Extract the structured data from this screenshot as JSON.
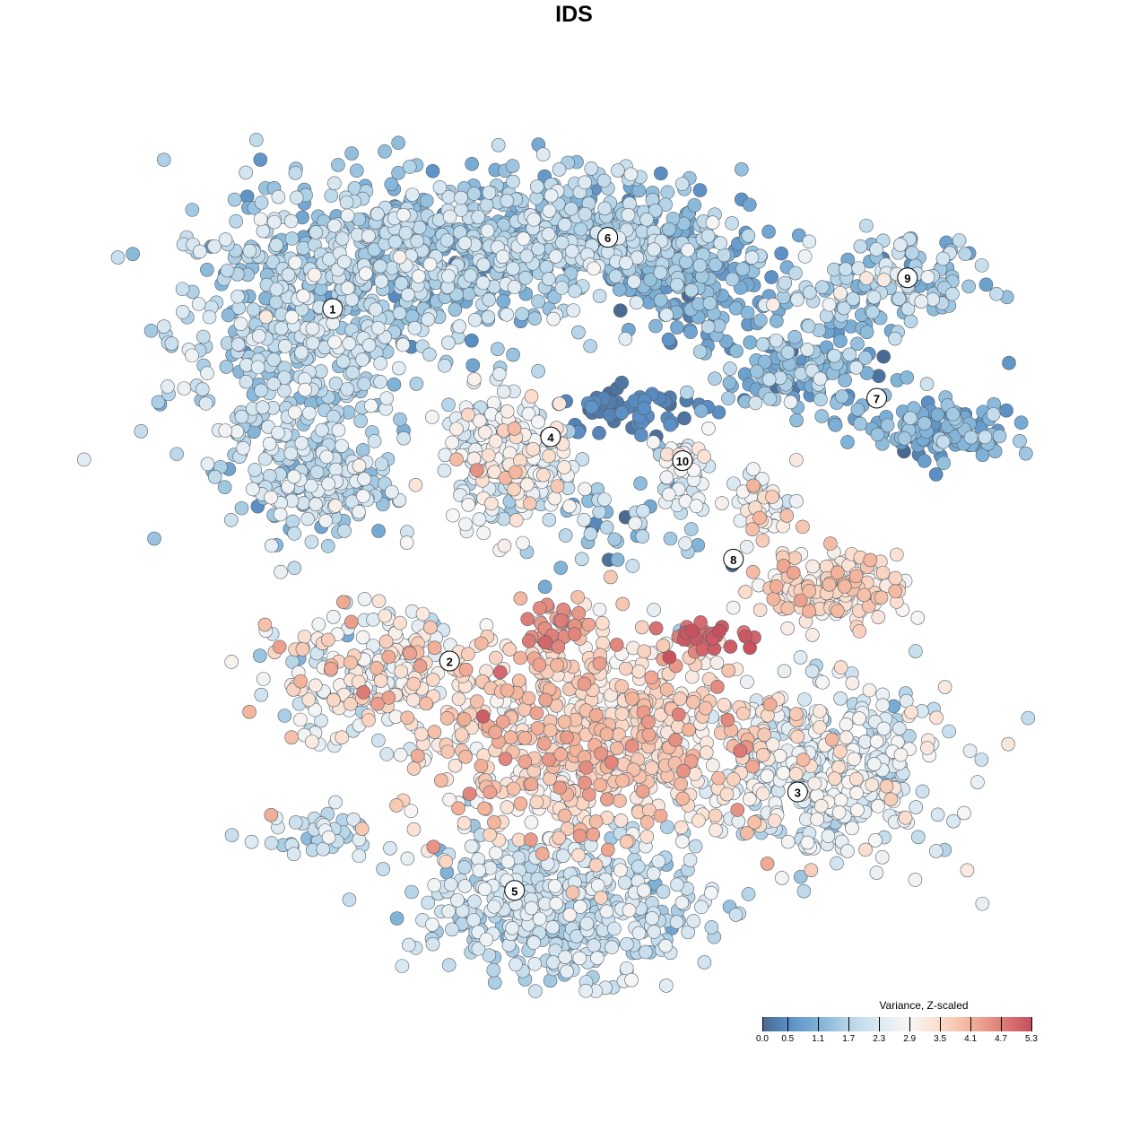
{
  "chart_data": {
    "type": "scatter",
    "title": "IDS",
    "xlabel": "",
    "ylabel": "",
    "xlim": [
      -50,
      50
    ],
    "ylim": [
      -50,
      50
    ],
    "grid": false,
    "color_variable": "Variance, Z-scaled",
    "color_range": [
      0,
      5.3
    ],
    "colorbar_ticks": [
      "0.0",
      "0.5",
      "1.1",
      "1.7",
      "2.3",
      "2.9",
      "3.5",
      "4.1",
      "4.7",
      "5.3"
    ],
    "colorbar_tick_values": [
      0.0,
      0.5,
      1.1,
      1.7,
      2.3,
      2.9,
      3.5,
      4.1,
      4.7,
      5.3
    ],
    "colorbar_colors": [
      "#4a6890",
      "#5a8ec4",
      "#7db1d6",
      "#b6d5e8",
      "#dce9f2",
      "#f7f6f5",
      "#fbdccb",
      "#f3b299",
      "#df7f79",
      "#c74f5e"
    ],
    "legend_placement": "bottom-right",
    "cluster_labels": [
      {
        "label": "1",
        "x": -29.5,
        "y": 30.2
      },
      {
        "label": "2",
        "x": -16.2,
        "y": -9.9
      },
      {
        "label": "3",
        "x": 23.4,
        "y": -24.8
      },
      {
        "label": "4",
        "x": -4.7,
        "y": 15.6
      },
      {
        "label": "5",
        "x": -8.8,
        "y": -36.0
      },
      {
        "label": "6",
        "x": 1.8,
        "y": 38.3
      },
      {
        "label": "7",
        "x": 32.4,
        "y": 20.0
      },
      {
        "label": "8",
        "x": 16.1,
        "y": 1.7
      },
      {
        "label": "9",
        "x": 35.9,
        "y": 33.7
      },
      {
        "label": "10",
        "x": 10.3,
        "y": 12.9
      }
    ],
    "point_groups": [
      {
        "cluster": "1",
        "cx": -33.7,
        "cy": 26.9,
        "sx": 7.1,
        "sy": 9.0,
        "n": 480,
        "mean": 1.8,
        "sd": 0.45
      },
      {
        "cluster": "1",
        "cx": -18.4,
        "cy": 35.7,
        "sx": 9,
        "sy": 4.5,
        "n": 480,
        "mean": 1.5,
        "sd": 0.5
      },
      {
        "cluster": "6",
        "cx": -1.0,
        "cy": 38.8,
        "sx": 9,
        "sy": 3.6,
        "n": 400,
        "mean": 1.5,
        "sd": 0.5
      },
      {
        "cluster": "6",
        "cx": 12.2,
        "cy": 32.7,
        "sx": 4,
        "sy": 3,
        "n": 150,
        "mean": 1.0,
        "sd": 0.4
      },
      {
        "cluster": "1",
        "cx": -30.6,
        "cy": 10.2,
        "sx": 4,
        "sy": 3.2,
        "n": 150,
        "mean": 1.9,
        "sd": 0.5
      },
      {
        "cluster": "4",
        "cx": -9.2,
        "cy": 13.3,
        "sx": 3.8,
        "sy": 3.6,
        "n": 250,
        "mean": 2.5,
        "sd": 0.6
      },
      {
        "cluster": "6",
        "cx": 4.1,
        "cy": 18.4,
        "sx": 4,
        "sy": 1.5,
        "n": 60,
        "mean": 0.3,
        "sd": 0.2
      },
      {
        "cluster": "7",
        "cx": 24.5,
        "cy": 23.5,
        "sx": 5,
        "sy": 2.5,
        "n": 150,
        "mean": 1.2,
        "sd": 0.5
      },
      {
        "cluster": "7",
        "cx": 39.8,
        "cy": 16.3,
        "sx": 4,
        "sy": 1.8,
        "n": 120,
        "mean": 1.0,
        "sd": 0.4
      },
      {
        "cluster": "9",
        "cx": 32.7,
        "cy": 33.2,
        "sx": 6,
        "sy": 2.5,
        "n": 140,
        "mean": 1.6,
        "sd": 0.6
      },
      {
        "cluster": "10",
        "cx": 10.2,
        "cy": 12.2,
        "sx": 1.5,
        "sy": 2,
        "n": 40,
        "mean": 2.3,
        "sd": 0.5
      },
      {
        "cluster": "8",
        "cx": 19.4,
        "cy": 8.2,
        "sx": 2,
        "sy": 2,
        "n": 50,
        "mean": 3.0,
        "sd": 0.6
      },
      {
        "cluster": "8",
        "cx": 27.6,
        "cy": -1.5,
        "sx": 4,
        "sy": 2,
        "n": 150,
        "mean": 3.4,
        "sd": 0.4
      },
      {
        "cluster": "2",
        "cx": -26.5,
        "cy": -11.2,
        "sx": 6,
        "sy": 4,
        "n": 200,
        "mean": 2.8,
        "sd": 0.7
      },
      {
        "cluster": "2",
        "cx": 0.0,
        "cy": -18.4,
        "sx": 11,
        "sy": 6,
        "n": 700,
        "mean": 3.5,
        "sd": 0.45
      },
      {
        "cluster": "2",
        "cx": 12.2,
        "cy": -7.1,
        "sx": 3,
        "sy": 1,
        "n": 30,
        "mean": 5.0,
        "sd": 0.2
      },
      {
        "cluster": "2",
        "cx": -4.1,
        "cy": -6.1,
        "sx": 2,
        "sy": 1.5,
        "n": 40,
        "mean": 4.3,
        "sd": 0.3
      },
      {
        "cluster": "3",
        "cx": 26.5,
        "cy": -22.4,
        "sx": 7,
        "sy": 5,
        "n": 400,
        "mean": 2.4,
        "sd": 0.5
      },
      {
        "cluster": "5",
        "cx": -4.1,
        "cy": -37.8,
        "sx": 8,
        "sy": 4,
        "n": 450,
        "mean": 2.0,
        "sd": 0.4
      },
      {
        "cluster": "5",
        "cx": -31.6,
        "cy": -29.6,
        "sx": 4,
        "sy": 1.5,
        "n": 40,
        "mean": 2.0,
        "sd": 0.4
      },
      {
        "cluster": "8",
        "cx": 2.0,
        "cy": 4.1,
        "sx": 5,
        "sy": 3,
        "n": 50,
        "mean": 1.5,
        "sd": 0.8
      }
    ]
  }
}
